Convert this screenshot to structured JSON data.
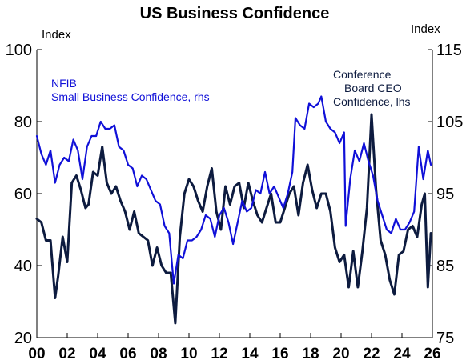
{
  "chart_data": {
    "type": "line",
    "title": "US Business Confidence",
    "left_axis": {
      "unit_label": "Index",
      "ylim": [
        20,
        100
      ],
      "ticks": [
        "100",
        "80",
        "60",
        "40",
        "20"
      ]
    },
    "right_axis": {
      "unit_label": "Index",
      "ylim": [
        75,
        115
      ],
      "ticks": [
        "115",
        "105",
        "95",
        "85",
        "75"
      ]
    },
    "x_axis": {
      "xlim": [
        2000,
        2026
      ],
      "ticks": [
        "00",
        "02",
        "04",
        "06",
        "08",
        "10",
        "12",
        "14",
        "16",
        "18",
        "20",
        "22",
        "24",
        "26"
      ]
    },
    "grid": false,
    "series": [
      {
        "name_lines": [
          "NFIB",
          "Small Business Confidence, rhs"
        ],
        "axis": "right",
        "color": "#1010d8",
        "x": [
          2000.0,
          2000.3,
          2000.6,
          2000.9,
          2001.2,
          2001.5,
          2001.8,
          2002.1,
          2002.4,
          2002.7,
          2003.0,
          2003.3,
          2003.6,
          2003.9,
          2004.2,
          2004.5,
          2004.8,
          2005.1,
          2005.4,
          2005.7,
          2006.0,
          2006.3,
          2006.6,
          2006.9,
          2007.2,
          2007.5,
          2007.8,
          2008.1,
          2008.4,
          2008.7,
          2009.0,
          2009.3,
          2009.6,
          2009.9,
          2010.2,
          2010.5,
          2010.8,
          2011.1,
          2011.4,
          2011.7,
          2012.0,
          2012.3,
          2012.6,
          2012.9,
          2013.2,
          2013.5,
          2013.8,
          2014.1,
          2014.4,
          2014.7,
          2015.0,
          2015.3,
          2015.6,
          2015.9,
          2016.2,
          2016.5,
          2016.8,
          2017.0,
          2017.3,
          2017.6,
          2017.9,
          2018.2,
          2018.5,
          2018.7,
          2019.0,
          2019.3,
          2019.6,
          2019.9,
          2020.2,
          2020.3,
          2020.6,
          2020.9,
          2021.2,
          2021.5,
          2021.8,
          2022.1,
          2022.4,
          2022.7,
          2023.0,
          2023.3,
          2023.6,
          2023.9,
          2024.2,
          2024.5,
          2024.8,
          2025.1,
          2025.4,
          2025.7,
          2025.9
        ],
        "y": [
          103.0,
          100.5,
          99.0,
          101.0,
          96.5,
          99.0,
          100.0,
          99.5,
          102.5,
          101.0,
          97.0,
          101.5,
          103.0,
          103.0,
          105.0,
          104.0,
          104.0,
          104.5,
          101.5,
          101.0,
          99.0,
          98.5,
          96.0,
          97.5,
          97.0,
          95.5,
          94.0,
          93.5,
          90.5,
          89.5,
          82.5,
          86.5,
          86.0,
          88.5,
          88.5,
          89.0,
          90.0,
          92.0,
          91.5,
          89.0,
          92.0,
          93.0,
          91.0,
          88.0,
          91.0,
          94.0,
          92.5,
          93.0,
          95.5,
          95.0,
          98.0,
          95.0,
          96.0,
          94.5,
          93.0,
          95.0,
          98.0,
          105.5,
          104.5,
          104.0,
          107.5,
          107.0,
          107.5,
          108.5,
          105.0,
          104.0,
          103.5,
          102.0,
          103.5,
          90.5,
          97.0,
          101.0,
          99.5,
          102.0,
          99.5,
          97.5,
          94.0,
          92.0,
          90.0,
          89.5,
          91.5,
          90.0,
          90.0,
          91.0,
          92.5,
          101.5,
          97.0,
          101.0,
          99.0
        ]
      },
      {
        "name_lines": [
          "Conference",
          "Board CEO",
          "Confidence, lhs"
        ],
        "axis": "left",
        "color": "#0d1b3f",
        "x": [
          2000.0,
          2000.3,
          2000.6,
          2000.9,
          2001.2,
          2001.4,
          2001.7,
          2002.0,
          2002.3,
          2002.6,
          2002.9,
          2003.2,
          2003.4,
          2003.7,
          2004.0,
          2004.3,
          2004.6,
          2004.9,
          2005.2,
          2005.5,
          2005.8,
          2006.1,
          2006.4,
          2006.7,
          2007.0,
          2007.3,
          2007.6,
          2007.9,
          2008.2,
          2008.5,
          2008.8,
          2009.1,
          2009.4,
          2009.7,
          2010.0,
          2010.3,
          2010.6,
          2010.9,
          2011.2,
          2011.5,
          2011.8,
          2012.1,
          2012.4,
          2012.7,
          2013.0,
          2013.3,
          2013.6,
          2013.9,
          2014.2,
          2014.5,
          2014.8,
          2015.1,
          2015.4,
          2015.7,
          2016.0,
          2016.3,
          2016.6,
          2016.9,
          2017.2,
          2017.5,
          2017.8,
          2018.1,
          2018.4,
          2018.7,
          2019.0,
          2019.3,
          2019.6,
          2019.9,
          2020.2,
          2020.5,
          2020.8,
          2021.1,
          2021.4,
          2021.7,
          2022.0,
          2022.3,
          2022.6,
          2022.9,
          2023.2,
          2023.5,
          2023.8,
          2024.1,
          2024.4,
          2024.7,
          2025.0,
          2025.3,
          2025.5,
          2025.7,
          2025.9
        ],
        "y": [
          53,
          52,
          47,
          47,
          31,
          37,
          48,
          41,
          63,
          65,
          61,
          56,
          57,
          66,
          65,
          73,
          63,
          60,
          62,
          58,
          55,
          50,
          55,
          49,
          48,
          47,
          40,
          45,
          40,
          38,
          38,
          24,
          48,
          60,
          64,
          62,
          58,
          55,
          62,
          67,
          55,
          50,
          62,
          57,
          62,
          63,
          56,
          63,
          58,
          54,
          52,
          56,
          60,
          52,
          52,
          56,
          60,
          62,
          54,
          63,
          68,
          61,
          56,
          60,
          60,
          55,
          45,
          41,
          43,
          34,
          44,
          34,
          44,
          56,
          82,
          61,
          47,
          43,
          36,
          32,
          43,
          44,
          50,
          51,
          48,
          57,
          60,
          34,
          49
        ]
      }
    ]
  }
}
